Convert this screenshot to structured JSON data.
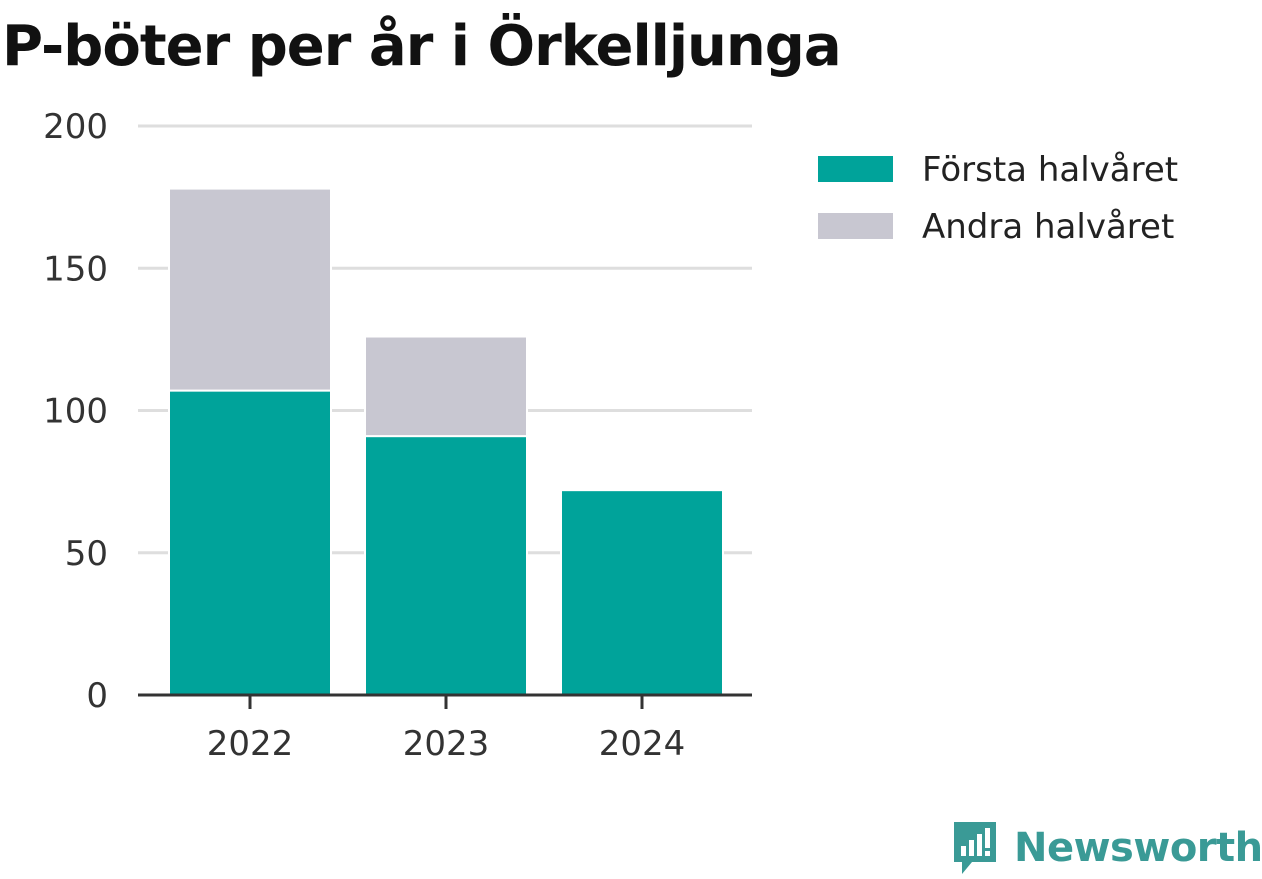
{
  "colors": {
    "first_half": "#00a39a",
    "second_half": "#c8c7d1",
    "grid": "#dedede",
    "axis": "#333333",
    "brand": "#3a9a96"
  },
  "brand": {
    "name": "Newsworthy",
    "icon": "newsworthy-logo-icon"
  },
  "chart_data": {
    "type": "bar",
    "stacked": true,
    "title": "P-böter per år i Örkelljunga",
    "categories": [
      "2022",
      "2023",
      "2024"
    ],
    "series": [
      {
        "name": "Första halvåret",
        "values": [
          107,
          91,
          72
        ]
      },
      {
        "name": "Andra halvåret",
        "values": [
          71,
          35,
          0
        ]
      }
    ],
    "ylim": [
      0,
      200
    ],
    "yticks": [
      0,
      50,
      100,
      150,
      200
    ],
    "grid": true,
    "legend": "top-right"
  }
}
